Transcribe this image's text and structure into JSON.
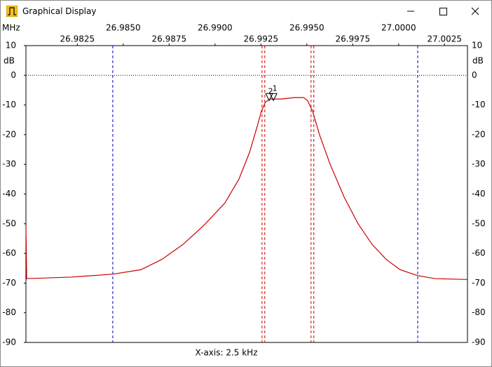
{
  "window": {
    "title": "Graphical Display"
  },
  "chart_data": {
    "type": "line",
    "x_unit_label": "MHz",
    "y_unit_label": "dB",
    "xlabel": "X-axis: 2.5 kHz",
    "xlim": [
      26.9797,
      27.00375
    ],
    "xticks": [
      26.9825,
      {
        "value": 26.985,
        "label": "26.9850"
      },
      26.9875,
      {
        "value": 26.99,
        "label": "26.9900"
      },
      26.9925,
      {
        "value": 26.995,
        "label": "26.9950"
      },
      26.9975,
      {
        "value": 27.0,
        "label": "27.0000"
      },
      27.0025
    ],
    "ylim": [
      -90,
      10
    ],
    "yticks": [
      10,
      0,
      -10,
      -20,
      -30,
      -40,
      -50,
      -60,
      -70,
      -80,
      -90
    ],
    "zero_line": true,
    "color": "#cc0000",
    "x": [
      26.9797,
      26.97974,
      26.98214,
      26.98443,
      26.98596,
      26.98711,
      26.98825,
      26.9894,
      26.99054,
      26.9913,
      26.99188,
      26.99226,
      26.99253,
      26.99275,
      26.99302,
      26.99359,
      26.99436,
      26.99482,
      26.99504,
      26.99531,
      26.99569,
      26.99627,
      26.99703,
      26.99779,
      26.99856,
      26.99932,
      27.00008,
      27.00104,
      27.00199,
      27.00375
    ],
    "values": [
      -51,
      -68.5,
      -68,
      -67,
      -65.5,
      -62,
      -57,
      -50.5,
      -43,
      -35,
      -26,
      -18,
      -12,
      -9,
      -8,
      -8,
      -7.5,
      -7.5,
      -8.5,
      -12,
      -20,
      -30,
      -41,
      -50,
      -57,
      -62,
      -65.5,
      -67.5,
      -68.5,
      -68.8
    ],
    "vlines": [
      {
        "x": 26.98443,
        "color": "#0000cc"
      },
      {
        "x": 27.00104,
        "color": "#0000cc"
      },
      {
        "x": 26.99256,
        "color": "#cc0000"
      },
      {
        "x": 26.99271,
        "color": "#cc0000"
      },
      {
        "x": 26.99523,
        "color": "#cc0000"
      },
      {
        "x": 26.99538,
        "color": "#cc0000"
      }
    ],
    "markers": [
      {
        "label": "2",
        "x": 26.99295,
        "y": -8.5
      },
      {
        "label": "1",
        "x": 26.99318,
        "y": -8.5
      }
    ]
  }
}
